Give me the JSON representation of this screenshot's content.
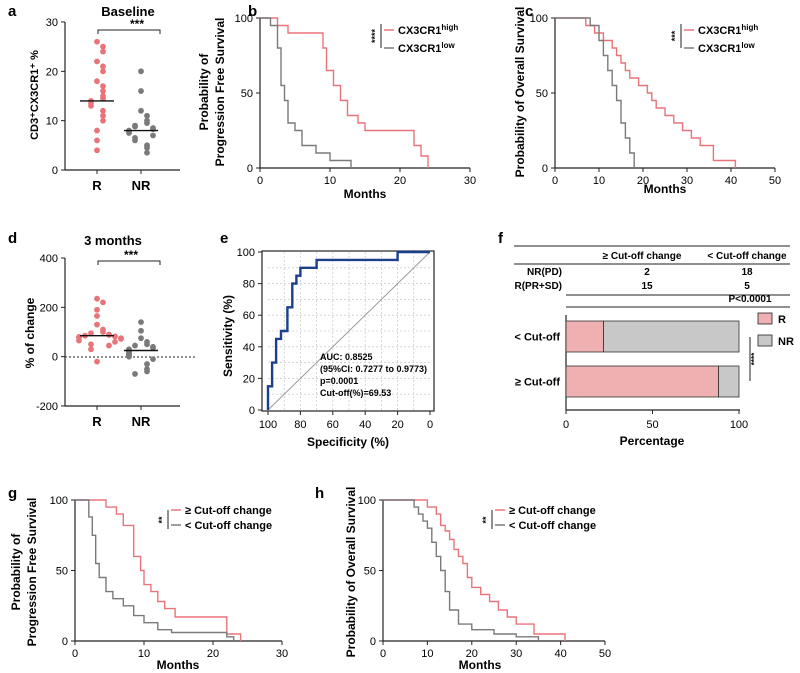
{
  "colors": {
    "red": "#e8747a",
    "gray": "#7a7a7a",
    "navy": "#1b3f8a",
    "bar_r": "#eeb0b0",
    "bar_nr": "#c8c8c8"
  },
  "panels": {
    "a": {
      "letter": "a",
      "title": "Baseline",
      "ylabel": "CD3⁺CX3CR1⁺ %",
      "sig": "***",
      "chart_data": {
        "type": "scatter",
        "categories": [
          "R",
          "NR"
        ],
        "ylim": [
          0,
          30
        ],
        "yticks": [
          0,
          10,
          20,
          30
        ],
        "series": [
          {
            "name": "R",
            "median": 14,
            "values": [
              26,
              25,
              24,
              22,
              21,
              20,
              18,
              17,
              16,
              15,
              14.5,
              14,
              13.5,
              13,
              12,
              11,
              10,
              8,
              6,
              4
            ]
          },
          {
            "name": "NR",
            "median": 8,
            "values": [
              20,
              16,
              12,
              11,
              10,
              9.5,
              9,
              8.8,
              8.5,
              8.3,
              8,
              7.8,
              7.5,
              7,
              6.5,
              6,
              5,
              4.5,
              3.5
            ]
          }
        ]
      }
    },
    "b": {
      "letter": "b",
      "ylabel1": "Probability of",
      "ylabel2": "Progression Free Survival",
      "xlabel": "Months",
      "sig": "****",
      "chart_data": {
        "type": "line",
        "xlim": [
          0,
          30
        ],
        "ylim": [
          0,
          100
        ],
        "xticks": [
          0,
          10,
          20,
          30
        ],
        "yticks": [
          0,
          50,
          100
        ],
        "series": [
          {
            "name": "CX3CR1",
            "sup": "high",
            "color": "#e8747a",
            "x": [
              0,
              2.5,
              2.5,
              4,
              4,
              9,
              9,
              9.5,
              9.5,
              10.5,
              10.5,
              11.5,
              11.5,
              12.5,
              12.5,
              14,
              14,
              15,
              15,
              22,
              22,
              23,
              23,
              24,
              24
            ],
            "y": [
              100,
              100,
              95,
              95,
              90,
              90,
              80,
              80,
              65,
              65,
              55,
              55,
              45,
              45,
              35,
              35,
              30,
              30,
              25,
              25,
              15,
              15,
              8,
              8,
              0
            ]
          },
          {
            "name": "CX3CR1",
            "sup": "low",
            "color": "#7a7a7a",
            "x": [
              0,
              1.5,
              1.5,
              2.5,
              2.5,
              3,
              3,
              3.5,
              3.5,
              4,
              4,
              5,
              5,
              6,
              6,
              8,
              8,
              10,
              10,
              13,
              13
            ],
            "y": [
              100,
              100,
              95,
              95,
              80,
              80,
              55,
              55,
              45,
              45,
              30,
              30,
              25,
              25,
              15,
              15,
              10,
              10,
              5,
              5,
              0
            ]
          }
        ]
      }
    },
    "c": {
      "letter": "c",
      "ylabel": "Probability of Overall Survival",
      "xlabel": "Months",
      "sig": "***",
      "chart_data": {
        "type": "line",
        "xlim": [
          0,
          50
        ],
        "ylim": [
          0,
          100
        ],
        "xticks": [
          0,
          10,
          20,
          30,
          40,
          50
        ],
        "yticks": [
          0,
          50,
          100
        ],
        "series": [
          {
            "name": "CX3CR1",
            "sup": "high",
            "color": "#e8747a",
            "x": [
              0,
              7,
              7,
              9,
              9,
              11,
              11,
              13,
              13,
              14,
              14,
              15,
              15,
              16,
              16,
              17,
              17,
              19,
              19,
              21,
              21,
              22,
              22,
              23,
              23,
              25,
              25,
              27,
              27,
              29,
              29,
              31,
              31,
              33,
              33,
              36,
              36,
              41,
              41
            ],
            "y": [
              100,
              100,
              95,
              95,
              90,
              90,
              85,
              85,
              80,
              80,
              75,
              75,
              70,
              70,
              65,
              65,
              60,
              60,
              55,
              55,
              50,
              50,
              45,
              45,
              40,
              40,
              35,
              35,
              30,
              30,
              25,
              25,
              20,
              20,
              15,
              15,
              5,
              5,
              0
            ]
          },
          {
            "name": "CX3CR1",
            "sup": "low",
            "color": "#7a7a7a",
            "x": [
              0,
              8,
              8,
              10,
              10,
              11,
              11,
              12,
              12,
              13,
              13,
              14,
              14,
              15,
              15,
              16,
              16,
              17,
              17,
              18,
              18
            ],
            "y": [
              100,
              100,
              95,
              95,
              85,
              85,
              75,
              75,
              65,
              65,
              55,
              55,
              45,
              45,
              30,
              30,
              20,
              20,
              10,
              10,
              0
            ]
          }
        ]
      }
    },
    "d": {
      "letter": "d",
      "title": "3 months",
      "ylabel": "% of change",
      "sig": "***",
      "chart_data": {
        "type": "scatter",
        "categories": [
          "R",
          "NR"
        ],
        "ylim": [
          -200,
          400
        ],
        "yticks": [
          -200,
          0,
          200,
          400
        ],
        "dotted_zero": true,
        "series": [
          {
            "name": "R",
            "median": 85,
            "values": [
              235,
              220,
              190,
              165,
              130,
              110,
              100,
              95,
              90,
              88,
              85,
              82,
              80,
              78,
              75,
              72,
              65,
              60,
              50,
              45,
              30,
              -20
            ]
          },
          {
            "name": "NR",
            "median": 25,
            "values": [
              140,
              105,
              75,
              60,
              50,
              45,
              40,
              35,
              30,
              25,
              20,
              15,
              10,
              5,
              0,
              -10,
              -30,
              -50,
              -60,
              -70
            ]
          }
        ]
      }
    },
    "e": {
      "letter": "e",
      "xlabel": "Specificity (%)",
      "ylabel": "Sensitivity (%)",
      "annotations": [
        "AUC: 0.8525",
        "(95%CI: 0.7277 to 0.9773)",
        "p=0.0001",
        "Cut-off(%)=69.53"
      ],
      "chart_data": {
        "type": "line",
        "xlim": [
          100,
          0
        ],
        "ylim": [
          0,
          100
        ],
        "xticks": [
          100,
          80,
          60,
          40,
          20,
          0
        ],
        "yticks": [
          0,
          20,
          40,
          60,
          80,
          100
        ],
        "series": [
          {
            "name": "ROC",
            "x": [
              100,
              100,
              97.5,
              97.5,
              95,
              95,
              92,
              92,
              88,
              88,
              85,
              85,
              82.5,
              82.5,
              80,
              80,
              75,
              75,
              70,
              70,
              65,
              65,
              20,
              20,
              0
            ],
            "y": [
              0,
              15,
              15,
              30,
              30,
              45,
              45,
              50,
              50,
              65,
              65,
              80,
              80,
              85,
              85,
              90,
              90,
              90,
              90,
              95,
              95,
              95,
              95,
              100,
              100
            ]
          },
          {
            "name": "reference",
            "x": [
              100,
              0
            ],
            "y": [
              0,
              100
            ]
          }
        ]
      }
    },
    "f": {
      "letter": "f",
      "table": {
        "headers": [
          "",
          "≥ Cut-off change",
          "< Cut-off change"
        ],
        "rows": [
          [
            "NR(PD)",
            "2",
            "18"
          ],
          [
            "R(PR+SD)",
            "15",
            "5"
          ]
        ],
        "pvalue": "P<0.0001"
      },
      "xlabel": "Percentage",
      "sig": "****",
      "chart_data": {
        "type": "bar",
        "orientation": "horizontal",
        "stacked": true,
        "categories": [
          "< Cut-off",
          "≥ Cut-off"
        ],
        "xlim": [
          0,
          100
        ],
        "xticks": [
          0,
          50,
          100
        ],
        "series": [
          {
            "name": "R",
            "color": "#eeb0b0",
            "values": [
              21.7,
              88.2
            ]
          },
          {
            "name": "NR",
            "color": "#c8c8c8",
            "values": [
              78.3,
              11.8
            ]
          }
        ]
      }
    },
    "g": {
      "letter": "g",
      "ylabel1": "Probability of",
      "ylabel2": "Progression Free Survival",
      "xlabel": "Months",
      "sig": "**",
      "chart_data": {
        "type": "line",
        "xlim": [
          0,
          30
        ],
        "ylim": [
          0,
          100
        ],
        "xticks": [
          0,
          10,
          20,
          30
        ],
        "yticks": [
          0,
          50,
          100
        ],
        "series": [
          {
            "name": "≥ Cut-off change",
            "color": "#e8747a",
            "x": [
              0,
              4.5,
              4.5,
              6,
              6,
              7,
              7,
              8.5,
              8.5,
              9.5,
              9.5,
              10,
              10,
              11,
              11,
              12,
              12,
              13,
              13,
              14.5,
              14.5,
              22,
              22,
              24,
              24
            ],
            "y": [
              100,
              100,
              95,
              95,
              90,
              90,
              82,
              82,
              60,
              60,
              50,
              50,
              40,
              40,
              35,
              35,
              28,
              28,
              23,
              23,
              17,
              17,
              5,
              5,
              0
            ]
          },
          {
            "name": "< Cut-off change",
            "color": "#7a7a7a",
            "x": [
              0,
              2,
              2,
              2.5,
              2.5,
              3,
              3,
              3.5,
              3.5,
              4.5,
              4.5,
              5.5,
              5.5,
              7,
              7,
              8.5,
              8.5,
              10,
              10,
              12,
              12,
              14,
              14,
              22,
              22,
              23,
              23
            ],
            "y": [
              100,
              100,
              88,
              88,
              75,
              75,
              55,
              55,
              45,
              45,
              35,
              35,
              30,
              30,
              25,
              25,
              18,
              18,
              13,
              13,
              8,
              8,
              6,
              6,
              3,
              3,
              0
            ]
          }
        ]
      }
    },
    "h": {
      "letter": "h",
      "ylabel": "Probability of Overall Survival",
      "xlabel": "Months",
      "sig": "**",
      "chart_data": {
        "type": "line",
        "xlim": [
          0,
          50
        ],
        "ylim": [
          0,
          100
        ],
        "xticks": [
          0,
          10,
          20,
          30,
          40,
          50
        ],
        "yticks": [
          0,
          50,
          100
        ],
        "series": [
          {
            "name": "≥ Cut-off change",
            "color": "#e8747a",
            "x": [
              0,
              10,
              10,
              12,
              12,
              13,
              13,
              14,
              14,
              15,
              15,
              16,
              16,
              17,
              17,
              18,
              18,
              19,
              19,
              20,
              20,
              22,
              22,
              24,
              24,
              26,
              26,
              28,
              28,
              30,
              30,
              34,
              34,
              41,
              41
            ],
            "y": [
              100,
              100,
              95,
              95,
              90,
              90,
              82,
              82,
              78,
              78,
              72,
              72,
              65,
              65,
              60,
              60,
              55,
              55,
              45,
              45,
              38,
              38,
              33,
              33,
              28,
              28,
              22,
              22,
              17,
              17,
              12,
              12,
              5,
              5,
              0
            ]
          },
          {
            "name": "< Cut-off change",
            "color": "#7a7a7a",
            "x": [
              0,
              7,
              7,
              8,
              8,
              9,
              9,
              10,
              10,
              11,
              11,
              12,
              12,
              13,
              13,
              14,
              14,
              15,
              15,
              17,
              17,
              20,
              20,
              25,
              25,
              30,
              30,
              35,
              35
            ],
            "y": [
              100,
              100,
              95,
              95,
              90,
              90,
              85,
              85,
              80,
              80,
              70,
              70,
              60,
              60,
              50,
              50,
              35,
              35,
              22,
              22,
              12,
              12,
              8,
              8,
              5,
              5,
              3,
              3,
              0
            ]
          }
        ]
      }
    }
  }
}
